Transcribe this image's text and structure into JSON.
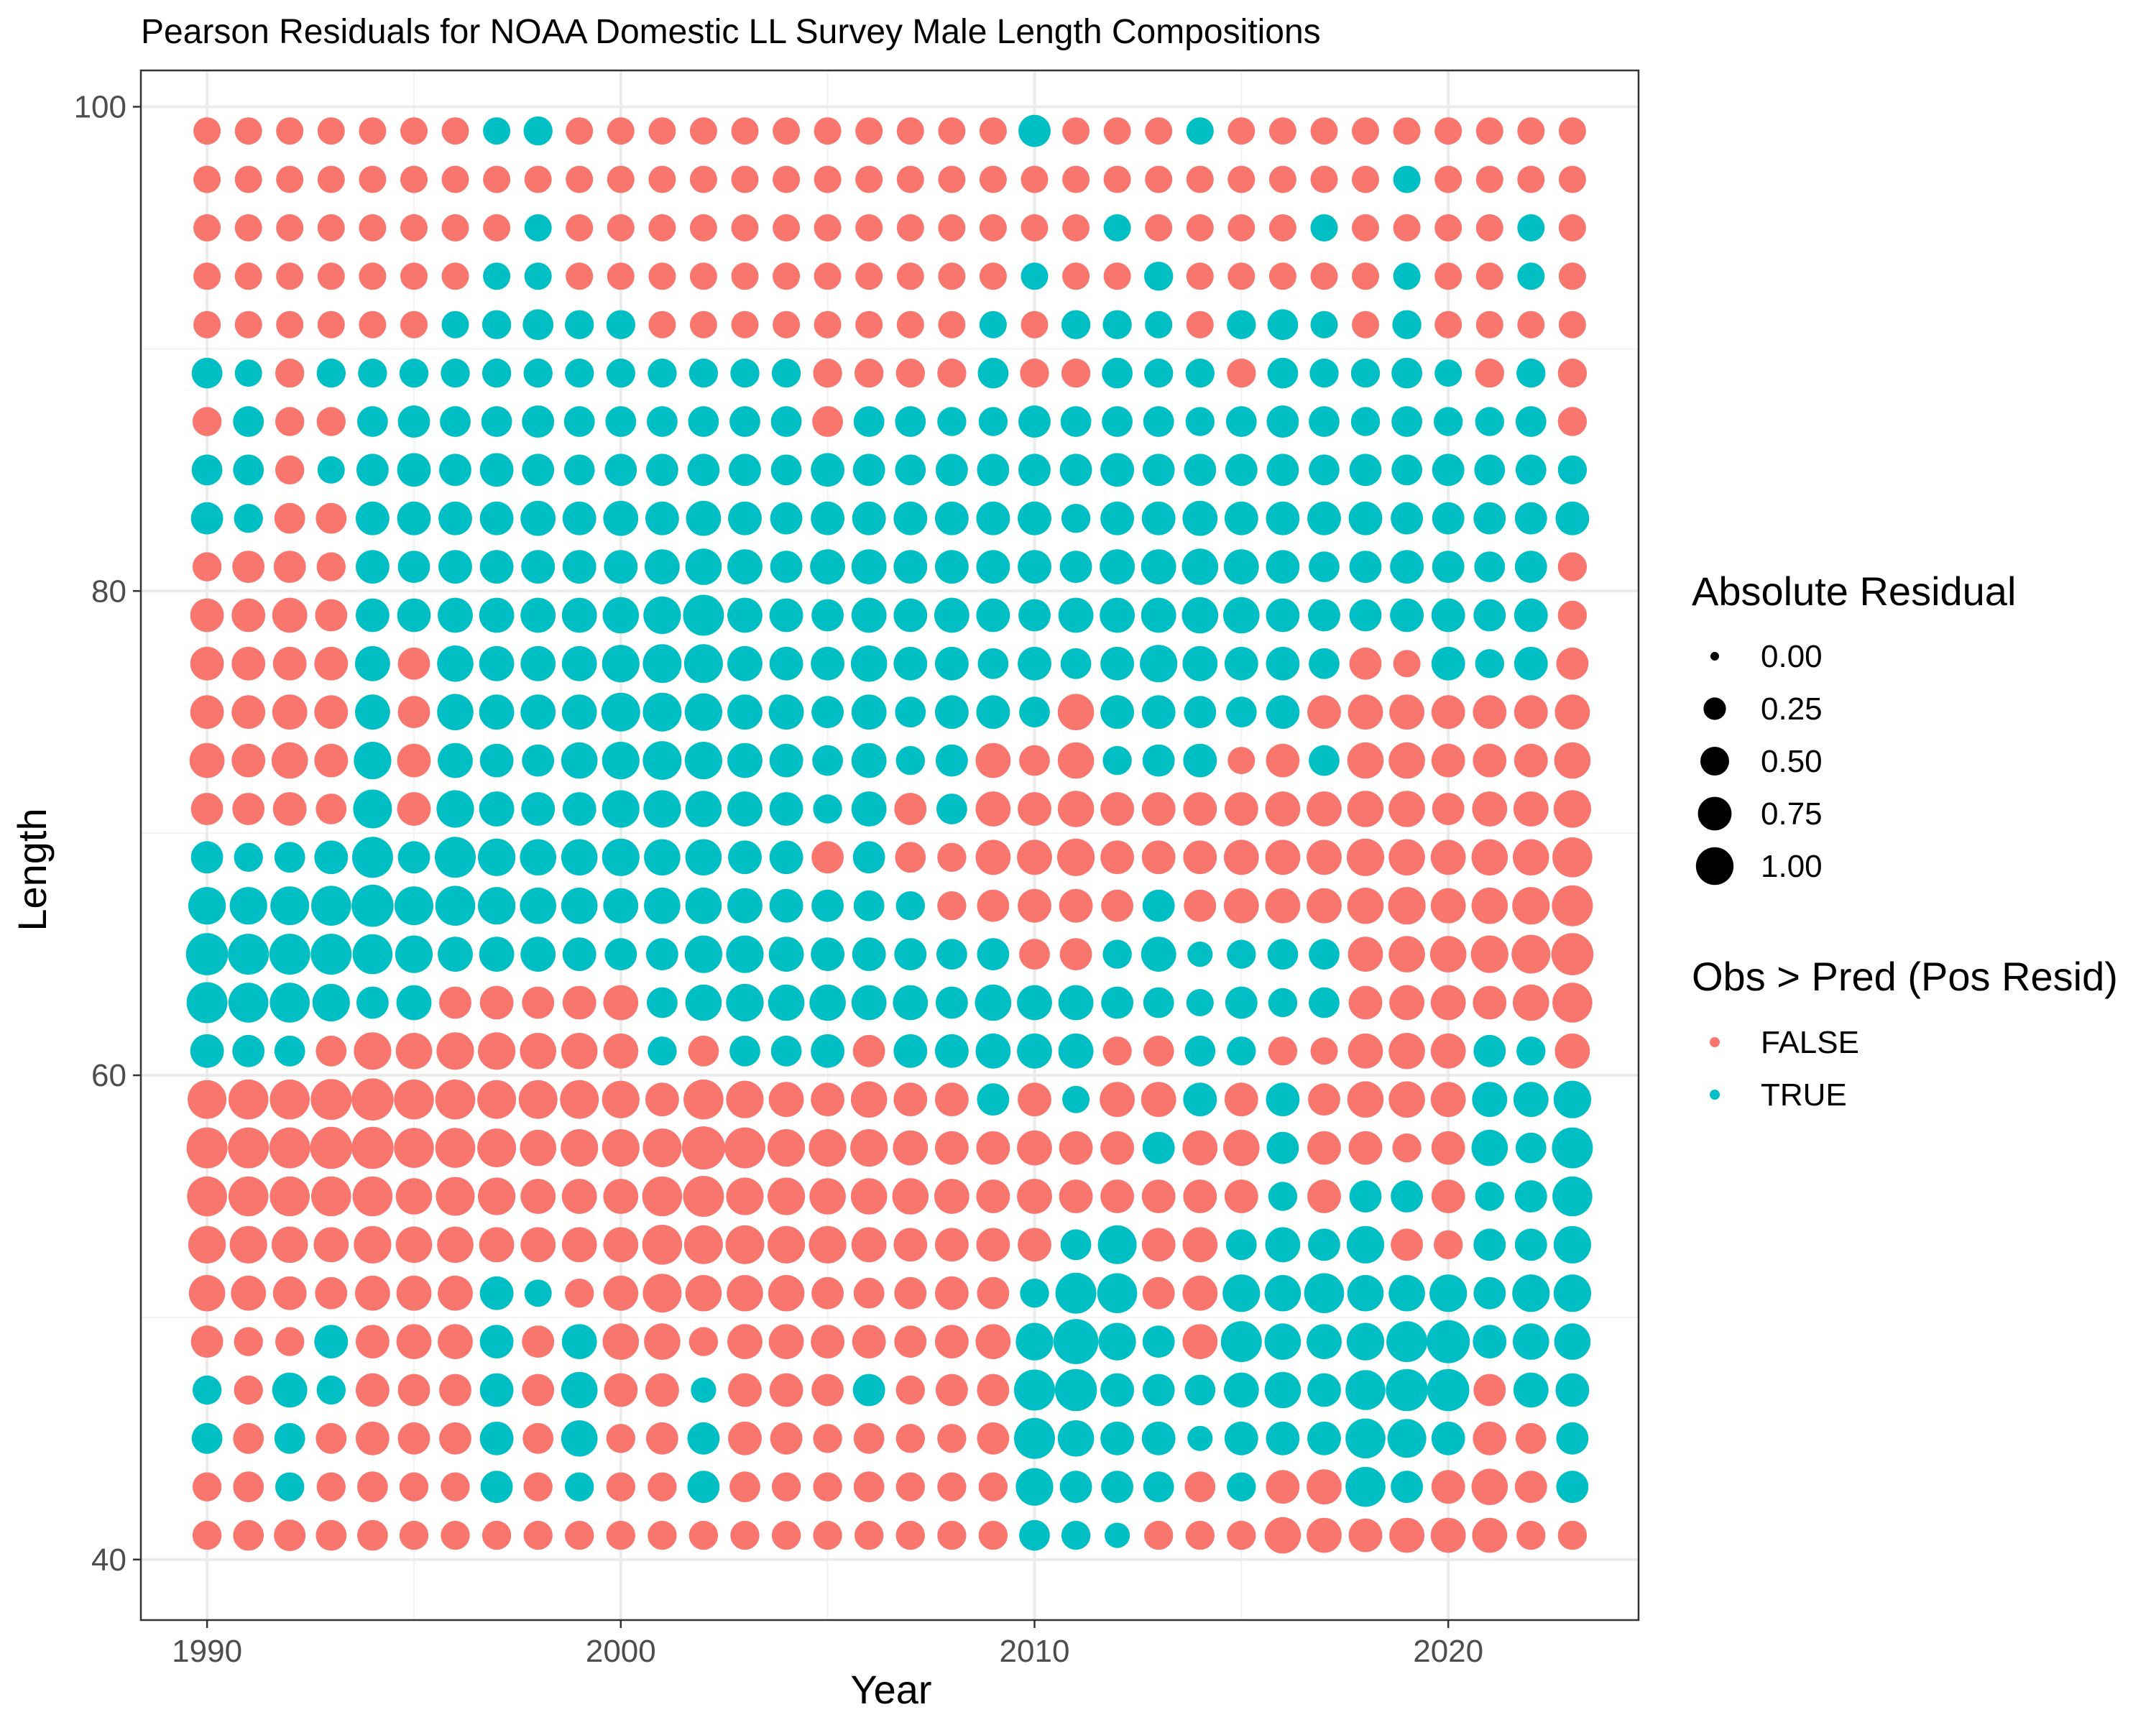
{
  "chart_data": {
    "type": "scatter",
    "title": "Pearson Residuals for NOAA Domestic LL Survey Male Length Compositions",
    "xlabel": "Year",
    "ylabel": "Length",
    "xlim": [
      1988.4,
      2024.6
    ],
    "ylim": [
      37.5,
      101.5
    ],
    "x_ticks": [
      1990,
      2000,
      2010,
      2020
    ],
    "y_ticks": [
      40,
      60,
      80,
      100
    ],
    "x_tick_labels": [
      "1990",
      "2000",
      "2010",
      "2020"
    ],
    "y_tick_labels": [
      "40",
      "60",
      "80",
      "100"
    ],
    "grid": true,
    "legend_position": "right",
    "years": [
      1990,
      1991,
      1992,
      1993,
      1994,
      1995,
      1996,
      1997,
      1998,
      1999,
      2000,
      2001,
      2002,
      2003,
      2004,
      2005,
      2006,
      2007,
      2008,
      2009,
      2010,
      2011,
      2012,
      2013,
      2014,
      2015,
      2016,
      2017,
      2018,
      2019,
      2020,
      2021,
      2022,
      2023
    ],
    "lengths": [
      41,
      43,
      45,
      47,
      49,
      51,
      53,
      55,
      57,
      59,
      61,
      63,
      65,
      67,
      69,
      71,
      73,
      75,
      77,
      79,
      81,
      83,
      85,
      87,
      89,
      91,
      93,
      95,
      97,
      99
    ],
    "size_legend": {
      "title": "Absolute Residual",
      "values": [
        0.0,
        0.25,
        0.5,
        0.75,
        1.0
      ],
      "labels": [
        "0.00",
        "0.25",
        "0.50",
        "0.75",
        "1.00"
      ]
    },
    "color_legend": {
      "title": "Obs > Pred (Pos Resid)",
      "labels": [
        "FALSE",
        "TRUE"
      ],
      "colors": [
        "#F8766D",
        "#00BFC4"
      ]
    },
    "residuals": [
      [
        -0.3,
        -0.35,
        -0.38,
        -0.35,
        -0.35,
        -0.3,
        -0.3,
        -0.3,
        -0.3,
        -0.3,
        -0.3,
        -0.3,
        -0.3,
        -0.3,
        -0.3,
        -0.3,
        -0.3,
        -0.3,
        -0.3,
        -0.3,
        0.35,
        0.3,
        0.2,
        -0.3,
        -0.3,
        -0.3,
        -0.55,
        -0.5,
        -0.45,
        -0.5,
        -0.5,
        -0.5,
        -0.3,
        -0.3
      ],
      [
        -0.3,
        -0.35,
        0.3,
        -0.3,
        -0.35,
        -0.3,
        -0.3,
        0.4,
        -0.3,
        0.3,
        -0.3,
        -0.3,
        0.4,
        -0.35,
        -0.3,
        -0.3,
        -0.35,
        -0.3,
        -0.3,
        -0.3,
        0.6,
        0.4,
        0.4,
        0.35,
        -0.35,
        0.3,
        -0.45,
        -0.5,
        0.7,
        0.4,
        -0.45,
        -0.55,
        -0.4,
        0.4
      ],
      [
        0.35,
        -0.35,
        0.35,
        -0.35,
        -0.45,
        -0.4,
        -0.4,
        0.45,
        -0.35,
        0.55,
        -0.3,
        -0.4,
        0.4,
        -0.45,
        -0.4,
        -0.3,
        -0.35,
        -0.3,
        -0.3,
        -0.4,
        0.75,
        0.55,
        0.45,
        0.45,
        0.2,
        0.45,
        0.45,
        0.45,
        0.7,
        0.65,
        0.45,
        -0.45,
        -0.35,
        0.4
      ],
      [
        0.3,
        -0.3,
        0.5,
        0.3,
        -0.45,
        -0.4,
        -0.4,
        0.45,
        -0.4,
        0.55,
        -0.45,
        -0.45,
        0.2,
        -0.45,
        -0.45,
        -0.4,
        0.4,
        -0.3,
        -0.4,
        -0.4,
        0.75,
        0.8,
        0.45,
        0.4,
        0.35,
        0.5,
        0.55,
        0.45,
        0.7,
        0.8,
        0.8,
        -0.4,
        0.5,
        0.45
      ],
      [
        -0.4,
        -0.3,
        -0.3,
        0.45,
        -0.45,
        -0.5,
        -0.5,
        0.45,
        -0.4,
        0.5,
        -0.55,
        -0.55,
        -0.3,
        -0.5,
        -0.5,
        -0.45,
        -0.45,
        -0.4,
        -0.45,
        -0.5,
        0.6,
        0.95,
        0.6,
        0.4,
        -0.5,
        0.75,
        0.55,
        0.5,
        0.6,
        0.75,
        0.85,
        0.45,
        0.55,
        0.55
      ],
      [
        -0.55,
        -0.5,
        -0.45,
        -0.4,
        -0.5,
        -0.5,
        -0.5,
        0.45,
        0.25,
        -0.3,
        -0.5,
        -0.65,
        -0.55,
        -0.55,
        -0.55,
        -0.4,
        -0.35,
        -0.4,
        -0.45,
        -0.4,
        0.3,
        0.75,
        0.7,
        -0.4,
        -0.5,
        0.6,
        0.55,
        0.7,
        0.55,
        0.55,
        0.6,
        0.4,
        0.6,
        0.6
      ],
      [
        -0.6,
        -0.6,
        -0.55,
        -0.5,
        -0.6,
        -0.55,
        -0.55,
        -0.5,
        -0.5,
        -0.5,
        -0.5,
        -0.7,
        -0.65,
        -0.65,
        -0.6,
        -0.6,
        -0.5,
        -0.45,
        -0.45,
        -0.45,
        -0.45,
        0.35,
        0.65,
        -0.45,
        -0.5,
        0.35,
        0.5,
        0.4,
        0.6,
        -0.4,
        -0.3,
        0.4,
        0.4,
        0.6
      ],
      [
        -0.7,
        -0.7,
        -0.7,
        -0.7,
        -0.7,
        -0.55,
        -0.65,
        -0.6,
        -0.5,
        -0.5,
        -0.5,
        -0.7,
        -0.75,
        -0.6,
        -0.6,
        -0.55,
        -0.55,
        -0.55,
        -0.5,
        -0.45,
        -0.5,
        -0.45,
        -0.45,
        -0.45,
        -0.45,
        -0.45,
        0.3,
        -0.45,
        0.4,
        0.4,
        -0.45,
        0.3,
        0.4,
        0.7
      ],
      [
        -0.75,
        -0.75,
        -0.75,
        -0.8,
        -0.8,
        -0.7,
        -0.7,
        -0.65,
        -0.55,
        -0.6,
        -0.6,
        -0.65,
        -0.85,
        -0.75,
        -0.6,
        -0.6,
        -0.6,
        -0.5,
        -0.45,
        -0.45,
        -0.5,
        -0.45,
        -0.45,
        0.4,
        -0.5,
        -0.55,
        0.4,
        -0.45,
        -0.45,
        -0.3,
        -0.45,
        0.55,
        0.35,
        0.75
      ],
      [
        -0.65,
        -0.7,
        -0.7,
        -0.75,
        -0.8,
        -0.7,
        -0.7,
        -0.65,
        -0.65,
        -0.65,
        -0.6,
        -0.45,
        -0.7,
        -0.6,
        -0.5,
        -0.45,
        -0.55,
        -0.45,
        -0.45,
        0.4,
        -0.45,
        0.25,
        -0.5,
        -0.5,
        0.45,
        -0.45,
        0.45,
        -0.4,
        -0.55,
        -0.55,
        -0.5,
        0.5,
        0.5,
        0.6
      ],
      [
        0.45,
        0.4,
        0.35,
        -0.35,
        -0.6,
        -0.55,
        -0.6,
        -0.6,
        -0.55,
        -0.55,
        -0.5,
        0.3,
        -0.35,
        0.35,
        0.35,
        0.45,
        -0.4,
        0.45,
        0.45,
        0.5,
        0.5,
        0.5,
        -0.3,
        -0.35,
        0.35,
        0.3,
        -0.3,
        -0.25,
        -0.5,
        -0.55,
        -0.5,
        0.4,
        0.3,
        -0.5
      ],
      [
        0.75,
        0.7,
        0.7,
        0.6,
        0.4,
        0.5,
        -0.4,
        -0.45,
        -0.4,
        -0.45,
        -0.5,
        0.35,
        0.55,
        0.6,
        0.55,
        0.55,
        0.5,
        0.5,
        0.4,
        0.55,
        0.5,
        0.5,
        0.4,
        0.35,
        0.25,
        0.4,
        0.3,
        0.35,
        -0.45,
        -0.5,
        -0.5,
        -0.45,
        -0.55,
        -0.7
      ],
      [
        0.8,
        0.75,
        0.75,
        0.75,
        0.7,
        0.6,
        0.5,
        0.5,
        0.5,
        0.45,
        0.4,
        0.4,
        0.6,
        0.6,
        0.5,
        0.45,
        0.45,
        0.4,
        0.35,
        0.4,
        -0.35,
        -0.4,
        0.3,
        0.5,
        0.2,
        0.3,
        0.35,
        0.35,
        -0.5,
        -0.55,
        -0.55,
        -0.6,
        -0.65,
        -0.8
      ],
      [
        0.6,
        0.6,
        0.65,
        0.7,
        0.8,
        0.65,
        0.7,
        0.6,
        0.55,
        0.55,
        0.5,
        0.55,
        0.55,
        0.5,
        0.45,
        0.4,
        0.35,
        0.3,
        -0.3,
        -0.4,
        -0.45,
        -0.45,
        -0.4,
        0.4,
        -0.4,
        -0.5,
        -0.5,
        -0.5,
        -0.55,
        -0.6,
        -0.5,
        -0.55,
        -0.6,
        -0.75
      ],
      [
        0.4,
        0.3,
        0.35,
        0.45,
        0.75,
        0.4,
        0.75,
        0.6,
        0.55,
        0.55,
        0.6,
        0.55,
        0.55,
        0.45,
        0.45,
        -0.4,
        0.4,
        -0.35,
        -0.3,
        -0.5,
        -0.5,
        -0.6,
        -0.45,
        -0.45,
        -0.45,
        -0.5,
        -0.5,
        -0.5,
        -0.6,
        -0.55,
        -0.5,
        -0.55,
        -0.55,
        -0.7
      ],
      [
        -0.4,
        -0.4,
        -0.45,
        -0.35,
        0.65,
        -0.45,
        0.6,
        0.5,
        0.45,
        0.45,
        0.6,
        0.6,
        0.55,
        0.5,
        0.45,
        0.3,
        0.5,
        -0.4,
        0.35,
        -0.5,
        -0.45,
        -0.55,
        -0.45,
        -0.45,
        -0.45,
        -0.45,
        -0.5,
        -0.5,
        -0.55,
        -0.55,
        -0.4,
        -0.5,
        -0.5,
        -0.6
      ],
      [
        -0.5,
        -0.45,
        -0.55,
        -0.45,
        0.6,
        -0.45,
        0.5,
        0.45,
        0.4,
        0.55,
        0.6,
        0.65,
        0.6,
        0.5,
        0.45,
        0.35,
        0.5,
        0.3,
        0.4,
        -0.5,
        -0.35,
        -0.55,
        0.3,
        0.4,
        0.45,
        -0.25,
        -0.45,
        0.35,
        -0.55,
        -0.55,
        -0.45,
        -0.45,
        -0.45,
        -0.55
      ],
      [
        -0.45,
        -0.45,
        -0.5,
        -0.45,
        0.5,
        -0.4,
        0.55,
        0.5,
        0.5,
        0.5,
        0.65,
        0.65,
        0.6,
        0.5,
        0.5,
        0.4,
        0.5,
        0.35,
        0.45,
        0.45,
        0.35,
        -0.55,
        0.45,
        0.45,
        0.4,
        0.35,
        0.45,
        -0.45,
        -0.5,
        -0.5,
        -0.45,
        -0.45,
        -0.45,
        -0.5
      ],
      [
        -0.45,
        -0.45,
        -0.45,
        -0.45,
        0.5,
        -0.4,
        0.55,
        0.5,
        0.5,
        0.5,
        0.6,
        0.65,
        0.65,
        0.5,
        0.45,
        0.45,
        0.55,
        0.45,
        0.45,
        0.35,
        0.45,
        0.35,
        0.45,
        0.6,
        0.5,
        0.45,
        0.45,
        0.35,
        -0.4,
        -0.25,
        0.45,
        0.3,
        0.45,
        -0.4
      ],
      [
        -0.45,
        -0.45,
        -0.5,
        -0.4,
        0.45,
        0.45,
        0.5,
        0.5,
        0.5,
        0.5,
        0.55,
        0.6,
        0.75,
        0.5,
        0.45,
        0.4,
        0.5,
        0.45,
        0.5,
        0.45,
        0.4,
        0.5,
        0.5,
        0.5,
        0.55,
        0.55,
        0.45,
        0.4,
        0.4,
        0.45,
        0.45,
        0.4,
        0.45,
        -0.3
      ],
      [
        -0.3,
        -0.4,
        -0.4,
        -0.3,
        0.45,
        0.4,
        0.45,
        0.45,
        0.45,
        0.45,
        0.45,
        0.5,
        0.55,
        0.5,
        0.4,
        0.5,
        0.5,
        0.45,
        0.45,
        0.45,
        0.45,
        0.4,
        0.5,
        0.5,
        0.55,
        0.5,
        0.45,
        0.35,
        0.4,
        0.45,
        0.4,
        0.35,
        0.4,
        -0.3
      ],
      [
        0.4,
        0.3,
        -0.35,
        -0.35,
        0.45,
        0.45,
        0.45,
        0.45,
        0.5,
        0.45,
        0.5,
        0.45,
        0.5,
        0.45,
        0.4,
        0.45,
        0.45,
        0.45,
        0.45,
        0.45,
        0.45,
        0.3,
        0.45,
        0.45,
        0.5,
        0.45,
        0.45,
        0.45,
        0.45,
        0.4,
        0.4,
        0.4,
        0.4,
        0.45
      ],
      [
        0.35,
        0.35,
        -0.3,
        0.25,
        0.4,
        0.45,
        0.4,
        0.45,
        0.4,
        0.35,
        0.4,
        0.4,
        0.4,
        0.4,
        0.35,
        0.45,
        0.4,
        0.35,
        0.4,
        0.4,
        0.4,
        0.4,
        0.45,
        0.4,
        0.4,
        0.4,
        0.4,
        0.35,
        0.4,
        0.35,
        0.4,
        0.35,
        0.35,
        0.3
      ],
      [
        -0.3,
        0.35,
        -0.3,
        -0.3,
        0.35,
        0.4,
        0.35,
        0.35,
        0.4,
        0.35,
        0.35,
        0.35,
        0.35,
        0.35,
        0.35,
        -0.35,
        0.35,
        0.35,
        0.3,
        0.3,
        0.4,
        0.35,
        0.35,
        0.35,
        0.3,
        0.35,
        0.4,
        0.35,
        0.3,
        0.35,
        0.3,
        0.3,
        0.35,
        -0.3
      ],
      [
        0.35,
        0.25,
        -0.3,
        0.3,
        0.3,
        0.3,
        0.3,
        0.3,
        0.3,
        0.3,
        0.3,
        0.3,
        0.3,
        0.3,
        0.3,
        -0.3,
        -0.3,
        -0.3,
        -0.3,
        0.35,
        -0.3,
        -0.3,
        0.35,
        0.3,
        0.3,
        -0.3,
        0.35,
        0.3,
        0.3,
        0.35,
        0.25,
        -0.3,
        0.3,
        -0.3
      ],
      [
        -0.25,
        -0.25,
        -0.25,
        -0.25,
        -0.25,
        -0.25,
        0.25,
        0.3,
        0.35,
        0.3,
        0.3,
        -0.25,
        -0.25,
        -0.25,
        -0.25,
        -0.25,
        -0.25,
        -0.25,
        -0.25,
        0.25,
        -0.25,
        0.3,
        0.3,
        0.25,
        -0.25,
        0.3,
        0.35,
        0.25,
        -0.25,
        0.3,
        -0.25,
        -0.25,
        -0.25,
        -0.25
      ],
      [
        -0.25,
        -0.25,
        -0.25,
        -0.25,
        -0.25,
        -0.25,
        -0.25,
        0.25,
        0.25,
        -0.25,
        -0.25,
        -0.25,
        -0.25,
        -0.25,
        -0.25,
        -0.25,
        -0.25,
        -0.25,
        -0.25,
        -0.25,
        0.25,
        -0.25,
        -0.25,
        0.3,
        -0.25,
        -0.25,
        -0.25,
        -0.25,
        -0.25,
        0.25,
        -0.25,
        -0.25,
        0.25,
        -0.25
      ],
      [
        -0.25,
        -0.25,
        -0.25,
        -0.25,
        -0.25,
        -0.25,
        -0.25,
        -0.25,
        0.25,
        -0.25,
        -0.25,
        -0.25,
        -0.25,
        -0.25,
        -0.25,
        -0.25,
        -0.25,
        -0.25,
        -0.25,
        -0.25,
        -0.25,
        -0.25,
        0.25,
        -0.25,
        -0.25,
        -0.25,
        -0.25,
        0.25,
        -0.25,
        -0.25,
        -0.25,
        -0.25,
        0.25,
        -0.25
      ],
      [
        -0.25,
        -0.25,
        -0.25,
        -0.25,
        -0.25,
        -0.25,
        -0.25,
        -0.25,
        -0.25,
        -0.25,
        -0.25,
        -0.25,
        -0.25,
        -0.25,
        -0.25,
        -0.25,
        -0.25,
        -0.25,
        -0.25,
        -0.25,
        -0.25,
        -0.25,
        -0.25,
        -0.25,
        -0.25,
        -0.25,
        -0.25,
        -0.25,
        -0.25,
        0.25,
        -0.25,
        -0.25,
        -0.25,
        -0.25
      ],
      [
        -0.25,
        -0.25,
        -0.25,
        -0.25,
        -0.25,
        -0.25,
        -0.25,
        0.25,
        0.3,
        -0.25,
        -0.25,
        -0.25,
        -0.25,
        -0.25,
        -0.25,
        -0.25,
        -0.25,
        -0.25,
        -0.25,
        -0.25,
        0.4,
        -0.25,
        -0.25,
        -0.25,
        0.25,
        -0.25,
        -0.25,
        -0.25,
        -0.25,
        -0.25,
        -0.25,
        -0.25,
        -0.25,
        -0.25
      ]
    ]
  }
}
